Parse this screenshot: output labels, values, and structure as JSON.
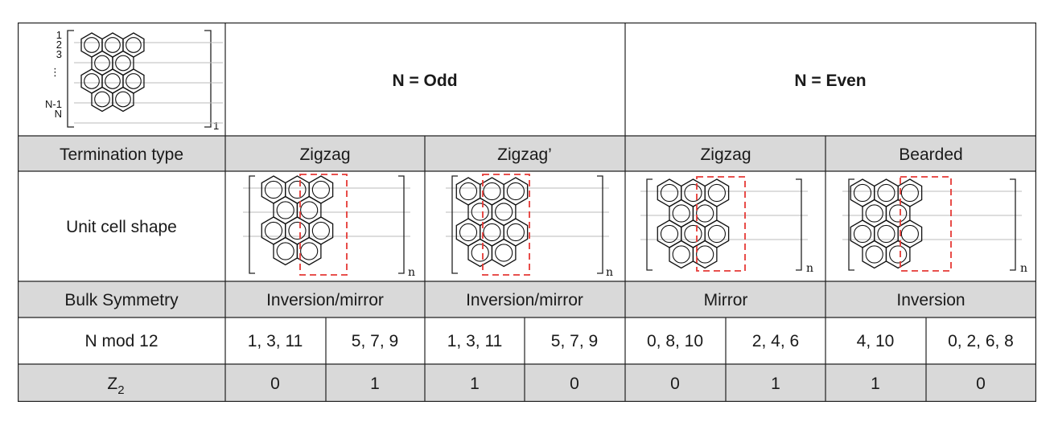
{
  "header": {
    "odd_label": "N = Odd",
    "even_label": "N = Even",
    "schematic_labels": [
      "1",
      "2",
      "3",
      "⋮",
      "N-1",
      "N"
    ],
    "schematic_subscript": "1"
  },
  "rows": {
    "termination": {
      "label": "Termination type",
      "values": [
        "Zigzag",
        "Zigzag’",
        "Zigzag",
        "Bearded"
      ]
    },
    "unit_cell": {
      "label": "Unit cell shape",
      "subscript": "n"
    },
    "symmetry": {
      "label": "Bulk Symmetry",
      "values": [
        "Inversion/mirror",
        "Inversion/mirror",
        "Mirror",
        "Inversion"
      ]
    },
    "nmod": {
      "label": "N mod 12",
      "values": [
        "1, 3, 11",
        "5, 7, 9",
        "1, 3, 11",
        "5, 7, 9",
        "0, 8, 10",
        "2, 4, 6",
        "4, 10",
        "0, 2, 6, 8"
      ]
    },
    "z2": {
      "label": "Z",
      "label_sub": "2",
      "values": [
        "0",
        "1",
        "1",
        "0",
        "0",
        "1",
        "1",
        "0"
      ]
    }
  }
}
